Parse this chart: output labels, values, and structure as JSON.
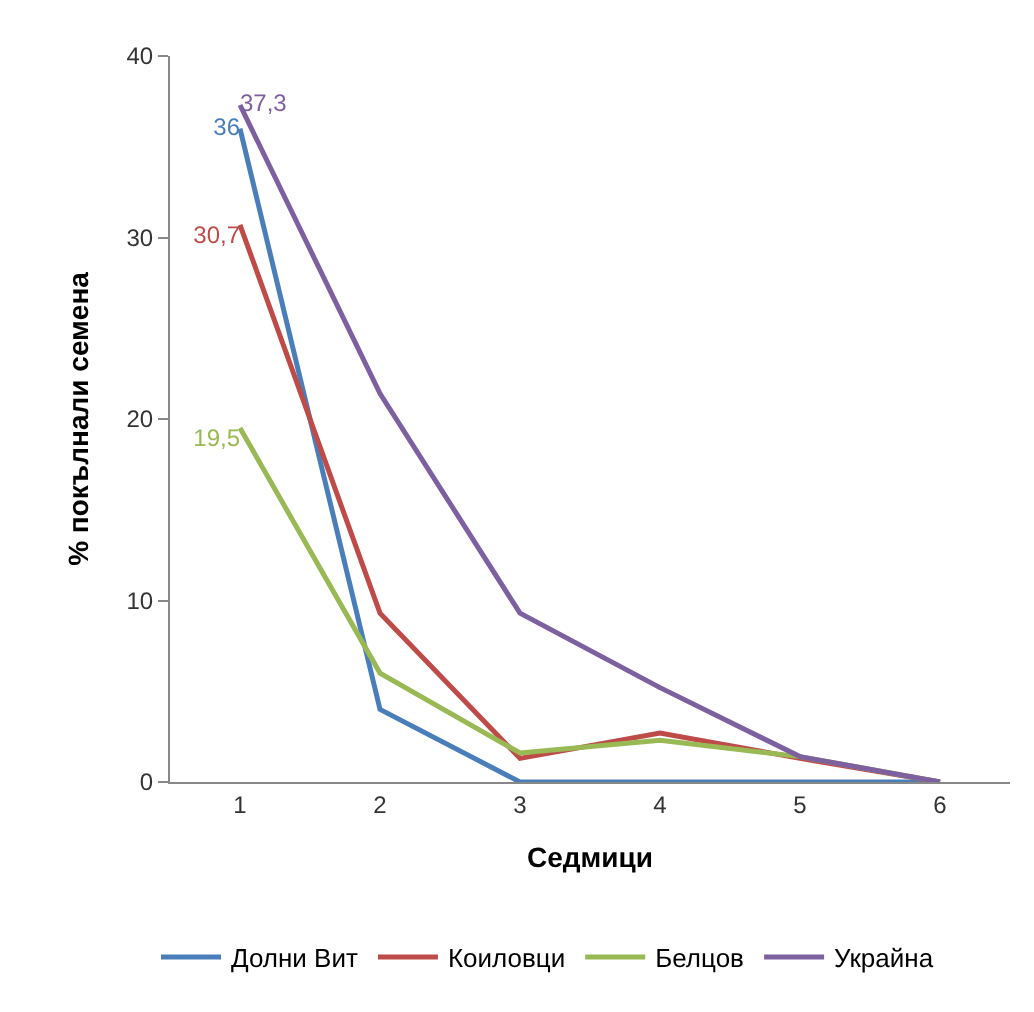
{
  "chart_data": {
    "type": "line",
    "xlabel": "Седмици",
    "ylabel": "% покълнали семена",
    "categories": [
      "1",
      "2",
      "3",
      "4",
      "5",
      "6"
    ],
    "series": [
      {
        "name": "Долни Вит",
        "color": "#4a7ebb",
        "values": [
          36,
          4,
          0,
          0,
          0,
          0
        ],
        "value_labels": [
          "36",
          null,
          null,
          null,
          null,
          null
        ]
      },
      {
        "name": "Коиловци",
        "color": "#be4b48",
        "values": [
          30.7,
          9.3,
          1.3,
          2.7,
          1.3,
          0
        ],
        "value_labels": [
          "30,7",
          null,
          null,
          null,
          null,
          null
        ]
      },
      {
        "name": "Белцов",
        "color": "#98b954",
        "values": [
          19.5,
          6,
          1.6,
          2.3,
          1.4,
          0
        ],
        "value_labels": [
          "19,5",
          null,
          null,
          null,
          null,
          null
        ]
      },
      {
        "name": "Украйна",
        "color": "#7d60a0",
        "values": [
          37.3,
          21.4,
          9.3,
          5.2,
          1.4,
          0
        ],
        "value_labels": [
          "37,3",
          null,
          null,
          null,
          null,
          null
        ]
      }
    ],
    "ylim": [
      0,
      40
    ],
    "yticks": [
      0,
      10,
      20,
      30,
      40
    ],
    "legend": "bottom",
    "marker": "none",
    "line_style": "solid"
  }
}
